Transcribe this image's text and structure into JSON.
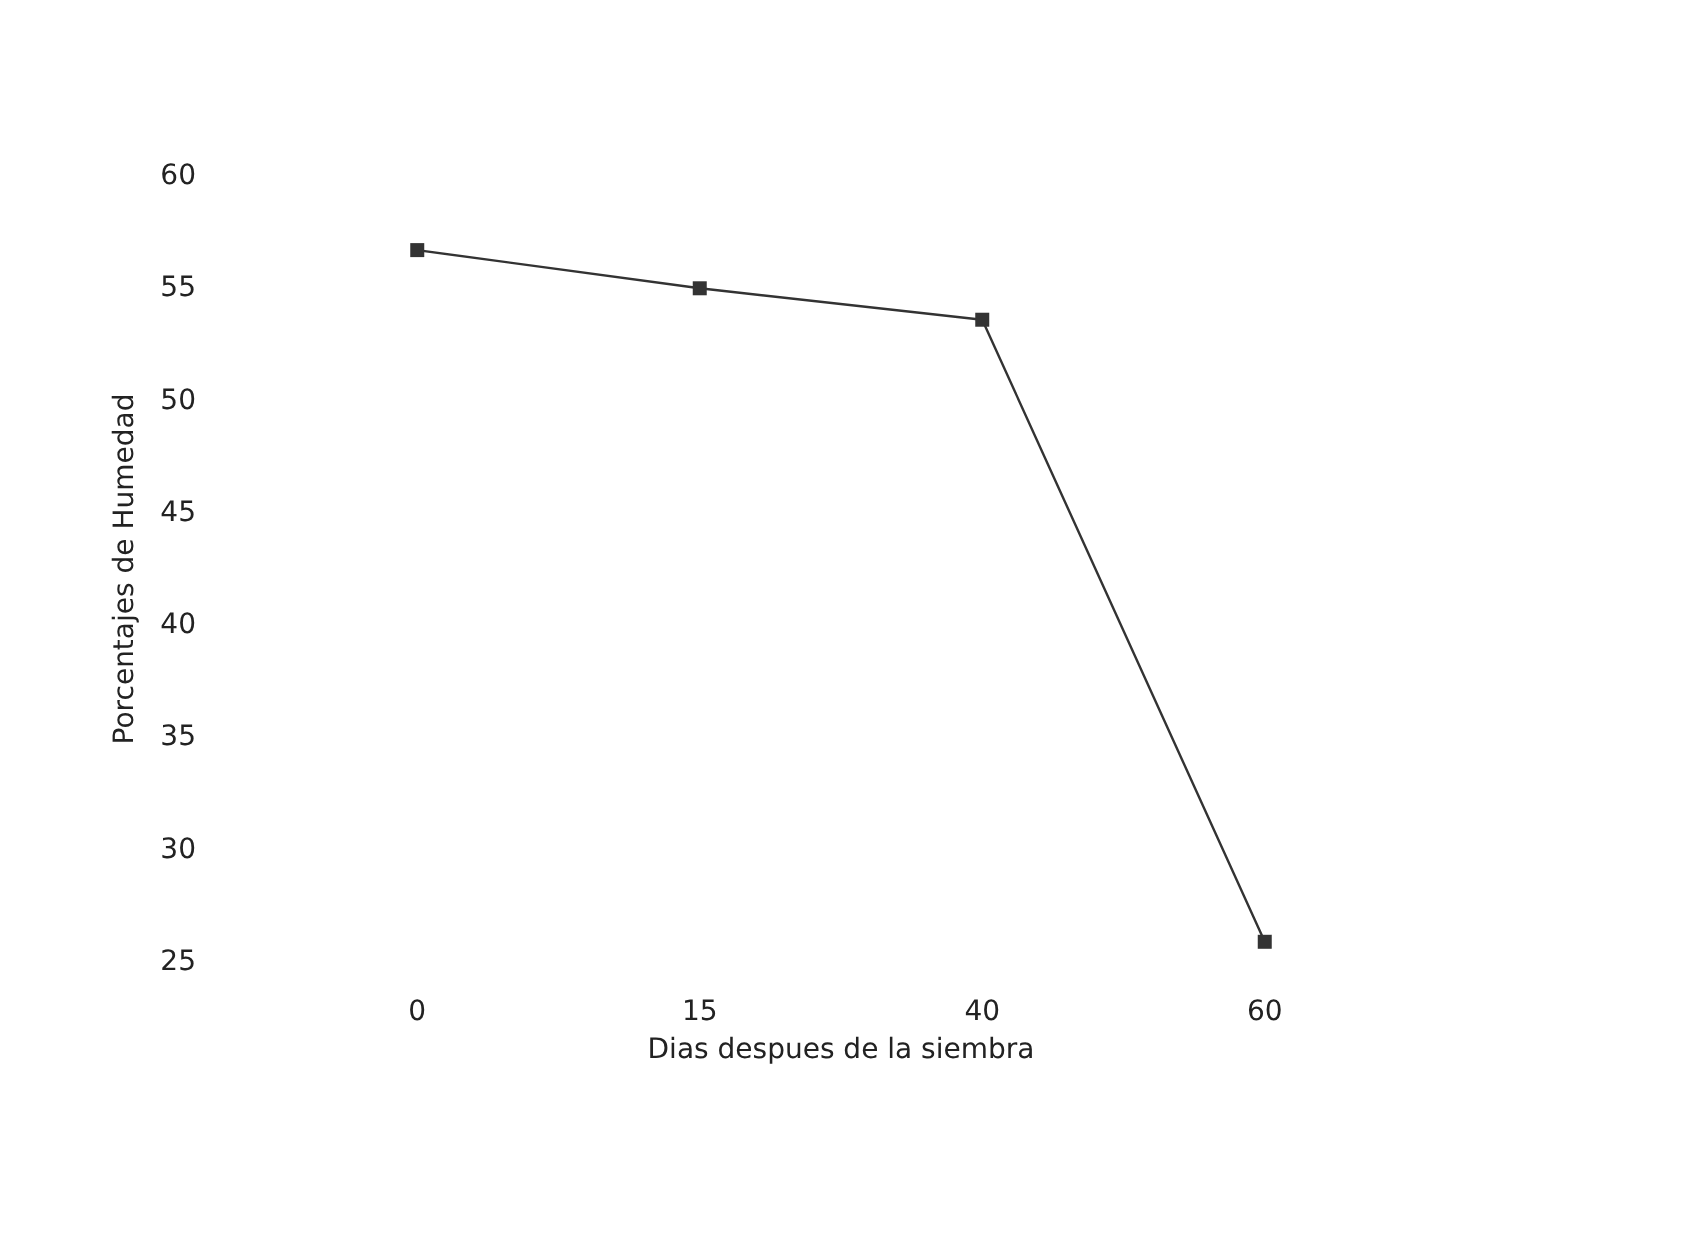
{
  "chart_data": {
    "type": "line",
    "xlabel": "Dias despues de la siembra",
    "ylabel": "Porcentajes de Humedad",
    "categories": [
      "0",
      "15",
      "40",
      "60"
    ],
    "series": [
      {
        "color": "#333333",
        "values": [
          56.7,
          55.0,
          53.6,
          25.9
        ]
      }
    ],
    "ylim": [
      25,
      60
    ],
    "yticks": [
      25,
      30,
      35,
      40,
      45,
      50,
      55,
      60
    ],
    "marker": "square",
    "line_style": "solid",
    "grid": false
  }
}
